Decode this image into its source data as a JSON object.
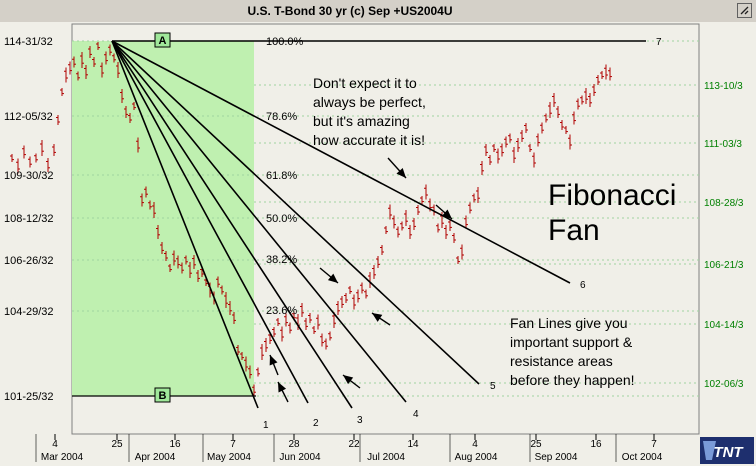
{
  "window": {
    "title": "U.S. T-Bond 30 yr (c) Sep +US2004U"
  },
  "colors": {
    "background": "#f0efe8",
    "shade": "#bff0b0",
    "grid": "#9fd39f",
    "candle": "#b00000",
    "fan": "#000000",
    "right_axis_text": "#008000",
    "left_axis_text": "#000000"
  },
  "chart_data": {
    "type": "candlestick",
    "title": "U.S. T-Bond 30 yr (c) Sep +US2004U",
    "y_left_ticks": [
      "114-31/32",
      "112-05/32",
      "109-30/32",
      "108-12/32",
      "106-26/32",
      "104-29/32",
      "101-25/32"
    ],
    "y_right_ticks": [
      "113-10/3",
      "111-03/3",
      "108-28/3",
      "106-21/3",
      "104-14/3",
      "102-06/3"
    ],
    "x_day_ticks": [
      "4",
      "25",
      "16",
      "7",
      "28",
      "22",
      "14",
      "4",
      "25",
      "16",
      "7"
    ],
    "x_month_labels": [
      "Mar 2004",
      "Apr 2004",
      "May 2004",
      "Jun 2004",
      "Jul 2004",
      "Aug 2004",
      "Sep 2004",
      "Oct 2004"
    ],
    "fib_levels": [
      "100.0%",
      "78.6%",
      "61.8%",
      "50.0%",
      "38.2%",
      "23.6%"
    ],
    "points": {
      "a": "A",
      "b": "B"
    },
    "fan_line_labels": [
      "1",
      "2",
      "3",
      "4",
      "5",
      "6",
      "7"
    ],
    "annotations": {
      "note1": [
        "Don't expect it to",
        "always be perfect,",
        "but it's amazing",
        "how accurate it is!"
      ],
      "fib_fan": [
        "Fibonacci",
        "Fan"
      ],
      "fan_lines": [
        "Fan Lines give you",
        "important support &",
        "resistance areas",
        "before they happen!"
      ]
    },
    "logo": "TNT"
  }
}
